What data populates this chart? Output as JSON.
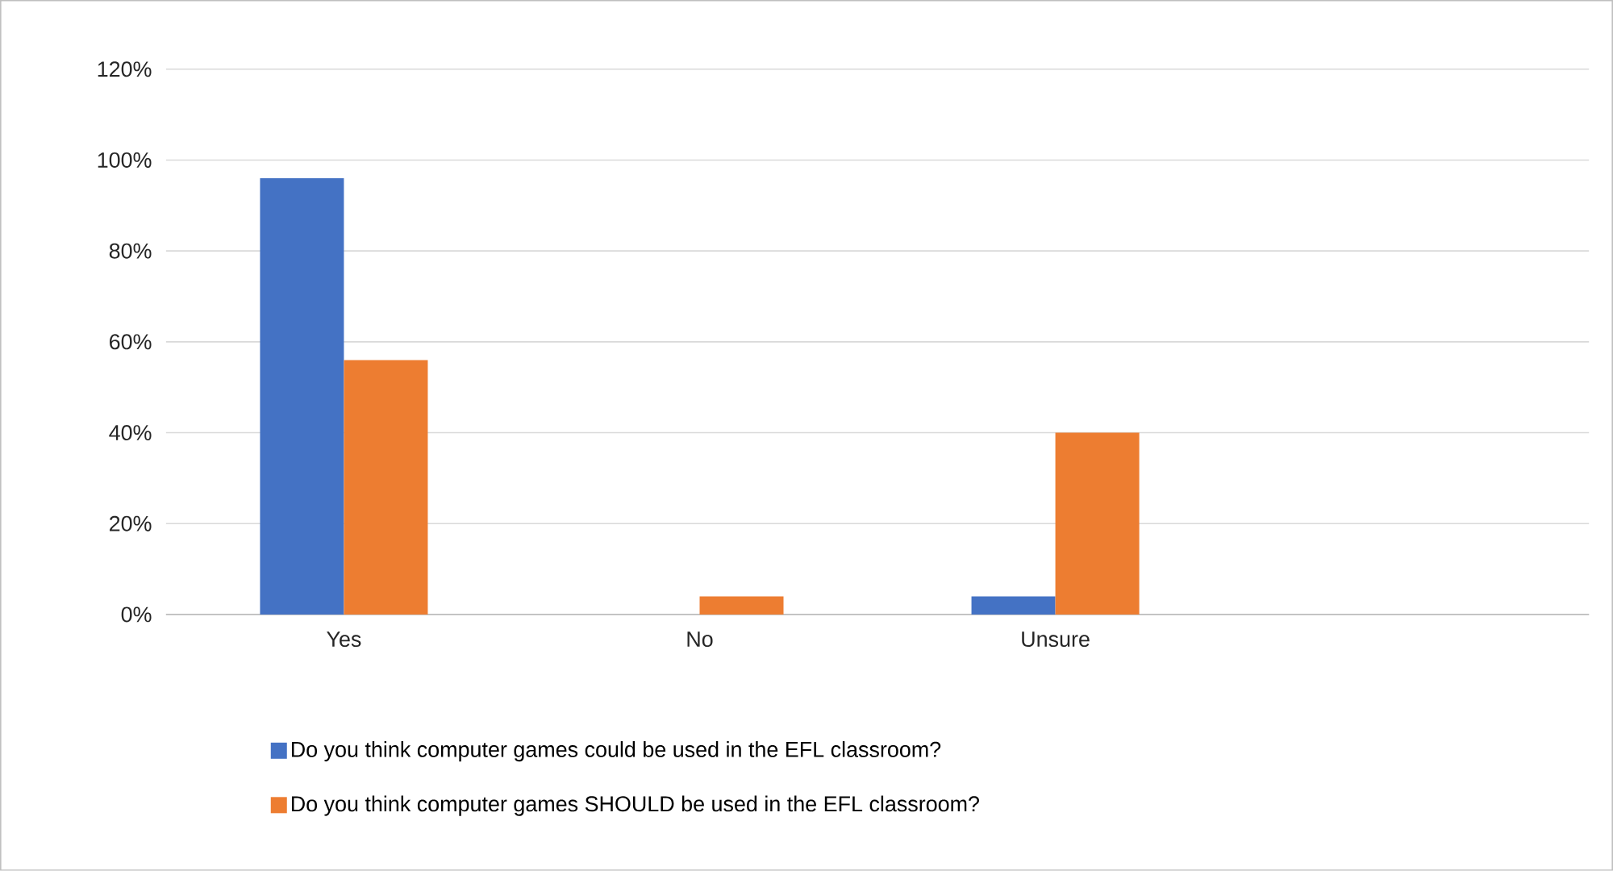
{
  "chart_data": {
    "type": "bar",
    "categories": [
      "Yes",
      "No",
      "Unsure",
      null
    ],
    "series": [
      {
        "name": "Do you think computer games could be used in the EFL classroom?",
        "color": "#4472c4",
        "values": [
          96,
          0,
          4,
          null
        ]
      },
      {
        "name": "Do you think computer games SHOULD be used in the EFL classroom?",
        "color": "#ed7d31",
        "values": [
          56,
          4,
          40,
          null
        ]
      }
    ],
    "ylim": [
      0,
      120
    ],
    "yticks": [
      {
        "value": 0,
        "label": "0%"
      },
      {
        "value": 20,
        "label": "20%"
      },
      {
        "value": 40,
        "label": "40%"
      },
      {
        "value": 60,
        "label": "60%"
      },
      {
        "value": 80,
        "label": "80%"
      },
      {
        "value": 100,
        "label": "100%"
      },
      {
        "value": 120,
        "label": "120%"
      }
    ],
    "grid": "y",
    "legend": "bottom"
  }
}
